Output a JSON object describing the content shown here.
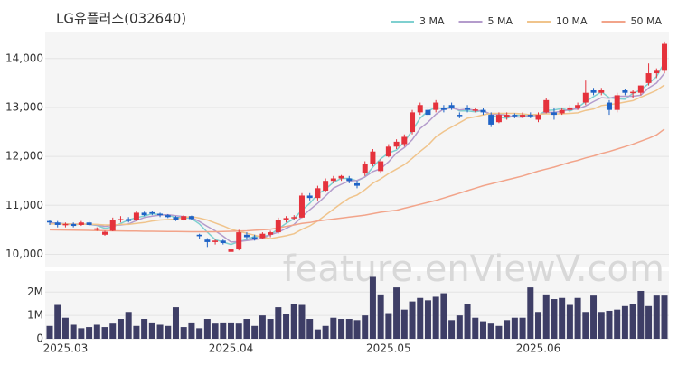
{
  "chart_data": {
    "type": "candlestick",
    "title": "LG유플러스(032640)",
    "watermark": "feature.enViewV.com",
    "categories": [
      null,
      null,
      "2025.03",
      null,
      null,
      null,
      null,
      null,
      null,
      null,
      null,
      null,
      null,
      null,
      null,
      null,
      null,
      null,
      null,
      null,
      null,
      null,
      null,
      "2025.04",
      null,
      null,
      null,
      null,
      null,
      null,
      null,
      null,
      null,
      null,
      null,
      null,
      null,
      null,
      null,
      null,
      null,
      null,
      null,
      "2025.05",
      null,
      null,
      null,
      null,
      null,
      null,
      null,
      null,
      null,
      null,
      null,
      null,
      null,
      null,
      null,
      null,
      null,
      null,
      "2025.06",
      null,
      null,
      null,
      null,
      null,
      null,
      null,
      null,
      null,
      null,
      null,
      null,
      null,
      null,
      null,
      null
    ],
    "open": [
      10680,
      10650,
      10600,
      10620,
      10600,
      10650,
      10500,
      10400,
      10480,
      10700,
      10720,
      10700,
      10850,
      10860,
      10830,
      10800,
      10760,
      10700,
      10780,
      10400,
      10300,
      10250,
      10280,
      10050,
      10100,
      10400,
      10350,
      10330,
      10400,
      10450,
      10700,
      10740,
      10750,
      11200,
      11150,
      11300,
      11500,
      11550,
      11550,
      11450,
      11650,
      11850,
      11700,
      12000,
      12200,
      12250,
      12500,
      12900,
      12950,
      12950,
      13000,
      13050,
      12850,
      13000,
      12950,
      12950,
      12850,
      12700,
      12800,
      12850,
      12800,
      12850,
      12750,
      12900,
      12900,
      12880,
      12950,
      13000,
      13100,
      13350,
      13300,
      13100,
      12950,
      13350,
      13300,
      13300,
      13500,
      13700,
      13750
    ],
    "high": [
      10700,
      10680,
      10650,
      10650,
      10680,
      10680,
      10550,
      10480,
      10750,
      10780,
      10760,
      10880,
      10870,
      10880,
      10850,
      10820,
      10780,
      10800,
      10790,
      10420,
      10330,
      10300,
      10300,
      10300,
      10500,
      10450,
      10400,
      10450,
      10480,
      10750,
      10780,
      10800,
      11250,
      11250,
      11400,
      11550,
      11600,
      11620,
      11600,
      11500,
      11900,
      12150,
      11950,
      12250,
      12350,
      12450,
      12950,
      13100,
      13000,
      13150,
      13050,
      13100,
      12900,
      13050,
      13000,
      12980,
      12900,
      12900,
      12900,
      12880,
      12900,
      12900,
      12900,
      13200,
      13000,
      13000,
      13050,
      13100,
      13550,
      13400,
      13400,
      13150,
      13300,
      13380,
      13350,
      13450,
      13900,
      13800,
      14350
    ],
    "low": [
      10600,
      10550,
      10550,
      10550,
      10580,
      10580,
      10480,
      10380,
      10470,
      10650,
      10650,
      10680,
      10780,
      10800,
      10760,
      10740,
      10680,
      10690,
      10700,
      10320,
      10150,
      10200,
      10200,
      9950,
      10080,
      10300,
      10280,
      10320,
      10350,
      10420,
      10650,
      10700,
      10740,
      11100,
      11100,
      11280,
      11450,
      11500,
      11450,
      11350,
      11600,
      11800,
      11650,
      11980,
      12150,
      12200,
      12450,
      12850,
      12800,
      12900,
      12900,
      12950,
      12780,
      12900,
      12900,
      12850,
      12600,
      12680,
      12750,
      12780,
      12780,
      12780,
      12700,
      12880,
      12750,
      12850,
      12900,
      12950,
      13050,
      13250,
      13250,
      12850,
      12900,
      13250,
      13200,
      13250,
      13450,
      13600,
      13700
    ],
    "close": [
      10650,
      10600,
      10620,
      10580,
      10650,
      10600,
      10530,
      10460,
      10700,
      10720,
      10680,
      10850,
      10800,
      10830,
      10800,
      10760,
      10700,
      10780,
      10720,
      10370,
      10250,
      10280,
      10230,
      10100,
      10450,
      10350,
      10320,
      10420,
      10450,
      10700,
      10740,
      10760,
      11200,
      11150,
      11350,
      11500,
      11550,
      11600,
      11500,
      11400,
      11850,
      12100,
      11900,
      12200,
      12300,
      12400,
      12900,
      13050,
      12850,
      13100,
      12950,
      13000,
      12830,
      12950,
      12960,
      12900,
      12650,
      12850,
      12850,
      12820,
      12850,
      12820,
      12850,
      13150,
      12850,
      12950,
      13000,
      13050,
      13300,
      13300,
      13350,
      12950,
      13250,
      13300,
      13320,
      13450,
      13700,
      13750,
      14300
    ],
    "up_color": "#e5323c",
    "down_color": "#1f63c6",
    "series": [
      {
        "name": "3 MA",
        "color": "#7fd0d0",
        "values": [
          10650,
          10630,
          10620,
          10600,
          10620,
          10610,
          10590,
          10530,
          10560,
          10630,
          10700,
          10750,
          10780,
          10830,
          10810,
          10800,
          10750,
          10750,
          10730,
          10620,
          10450,
          10300,
          10250,
          10200,
          10260,
          10300,
          10370,
          10360,
          10400,
          10520,
          10630,
          10730,
          10900,
          11040,
          11230,
          11330,
          11470,
          11550,
          11550,
          11500,
          11580,
          11780,
          11950,
          12070,
          12130,
          12300,
          12530,
          12780,
          12930,
          13000,
          12970,
          13020,
          12930,
          12930,
          12910,
          12940,
          12840,
          12800,
          12780,
          12840,
          12840,
          12830,
          12840,
          12940,
          12950,
          12980,
          12930,
          13000,
          13120,
          13220,
          13320,
          13200,
          13180,
          13170,
          13290,
          13360,
          13490,
          13630,
          13920
        ]
      },
      {
        "name": "5 MA",
        "color": "#b49ccc",
        "values": [
          10640,
          10635,
          10625,
          10615,
          10620,
          10610,
          10600,
          10570,
          10590,
          10600,
          10620,
          10690,
          10750,
          10780,
          10800,
          10810,
          10790,
          10770,
          10750,
          10670,
          10570,
          10480,
          10370,
          10250,
          10260,
          10280,
          10300,
          10330,
          10400,
          10450,
          10530,
          10610,
          10770,
          10910,
          11040,
          11190,
          11350,
          11430,
          11500,
          11510,
          11580,
          11690,
          11750,
          11890,
          12070,
          12180,
          12340,
          12570,
          12700,
          12860,
          12970,
          12990,
          12950,
          12970,
          12940,
          12930,
          12860,
          12860,
          12840,
          12810,
          12800,
          12840,
          12840,
          12900,
          12900,
          12920,
          12960,
          12970,
          13030,
          13120,
          13200,
          13190,
          13230,
          13230,
          13230,
          13250,
          13400,
          13500,
          13700
        ]
      },
      {
        "name": "10 MA",
        "color": "#f0c48c",
        "values": [
          10620,
          10620,
          10620,
          10615,
          10615,
          10615,
          10610,
          10600,
          10600,
          10610,
          10610,
          10630,
          10650,
          10680,
          10700,
          10710,
          10720,
          10750,
          10770,
          10740,
          10700,
          10640,
          10580,
          10510,
          10470,
          10430,
          10390,
          10350,
          10320,
          10350,
          10380,
          10420,
          10510,
          10580,
          10680,
          10800,
          10920,
          11040,
          11150,
          11210,
          11320,
          11450,
          11540,
          11650,
          11740,
          11830,
          11960,
          12100,
          12230,
          12400,
          12510,
          12600,
          12690,
          12780,
          12810,
          12850,
          12880,
          12880,
          12880,
          12880,
          12870,
          12850,
          12860,
          12870,
          12870,
          12870,
          12880,
          12890,
          12940,
          12970,
          13040,
          13060,
          13080,
          13110,
          13140,
          13210,
          13280,
          13350,
          13460
        ]
      },
      {
        "name": "50 MA",
        "color": "#f2a48a",
        "values": [
          10500,
          10498,
          10495,
          10493,
          10490,
          10488,
          10485,
          10483,
          10480,
          10478,
          10475,
          10473,
          10470,
          10470,
          10468,
          10466,
          10464,
          10462,
          10460,
          10460,
          10460,
          10460,
          10465,
          10470,
          10475,
          10480,
          10490,
          10500,
          10510,
          10540,
          10570,
          10600,
          10630,
          10650,
          10680,
          10700,
          10720,
          10740,
          10760,
          10780,
          10800,
          10830,
          10860,
          10880,
          10900,
          10940,
          10980,
          11020,
          11060,
          11100,
          11150,
          11200,
          11250,
          11300,
          11350,
          11400,
          11440,
          11480,
          11520,
          11560,
          11600,
          11650,
          11700,
          11740,
          11780,
          11830,
          11880,
          11920,
          11970,
          12010,
          12060,
          12100,
          12150,
          12200,
          12250,
          12310,
          12370,
          12440,
          12560
        ]
      }
    ],
    "ylim": [
      9750,
      14550
    ],
    "yticks": [
      {
        "value": 10000,
        "label": "10,000"
      },
      {
        "value": 11000,
        "label": "11,000"
      },
      {
        "value": 12000,
        "label": "12,000"
      },
      {
        "value": 13000,
        "label": "13,000"
      },
      {
        "value": 14000,
        "label": "14,000"
      }
    ],
    "grid": true,
    "volume": {
      "color": "#3e3e66",
      "ylim": [
        0,
        2900000
      ],
      "yticks": [
        0,
        {
          "value": 1000000,
          "label": "1M"
        },
        {
          "value": 2000000,
          "label": "2M"
        }
      ],
      "values": [
        550000,
        1450000,
        900000,
        600000,
        450000,
        500000,
        600000,
        500000,
        650000,
        850000,
        1150000,
        550000,
        850000,
        700000,
        600000,
        550000,
        1350000,
        500000,
        700000,
        450000,
        850000,
        650000,
        700000,
        700000,
        650000,
        850000,
        550000,
        1000000,
        850000,
        1350000,
        1050000,
        1500000,
        1450000,
        850000,
        400000,
        550000,
        900000,
        850000,
        850000,
        800000,
        1000000,
        2650000,
        1900000,
        1100000,
        2200000,
        1250000,
        1600000,
        1750000,
        1650000,
        1800000,
        1950000,
        800000,
        1000000,
        1500000,
        900000,
        750000,
        650000,
        550000,
        800000,
        900000,
        900000,
        2200000,
        1150000,
        1900000,
        1700000,
        1750000,
        1450000,
        1750000,
        1150000,
        1850000,
        1150000,
        1200000,
        1250000,
        1400000,
        1500000,
        2050000,
        1400000,
        1850000,
        1850000
      ]
    }
  }
}
